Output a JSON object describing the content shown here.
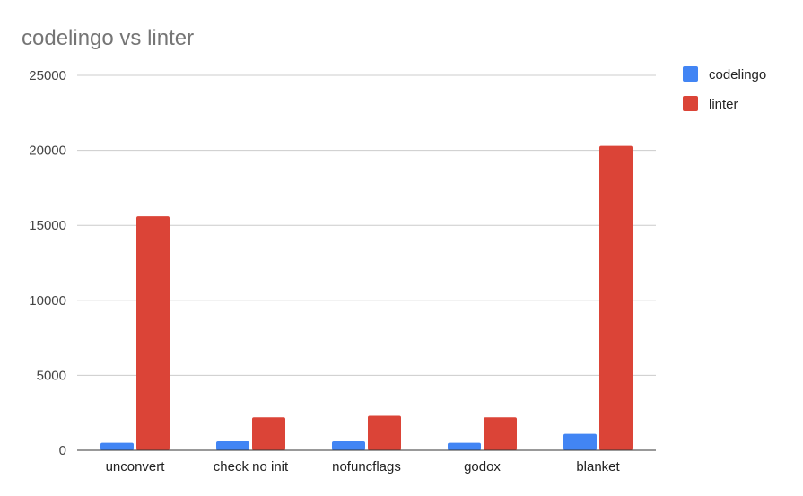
{
  "chart_data": {
    "type": "bar",
    "title": "codelingo vs linter",
    "xlabel": "",
    "ylabel": "",
    "categories": [
      "unconvert",
      "check no init",
      "nofuncflags",
      "godox",
      "blanket"
    ],
    "series": [
      {
        "name": "codelingo",
        "color": "#4285f4",
        "values": [
          500,
          600,
          600,
          500,
          1100
        ]
      },
      {
        "name": "linter",
        "color": "#db4437",
        "values": [
          15600,
          2200,
          2300,
          2200,
          20300
        ]
      }
    ],
    "ylim": [
      0,
      25000
    ],
    "yticks": [
      0,
      5000,
      10000,
      15000,
      20000,
      25000
    ],
    "grid": true,
    "legend_position": "right"
  }
}
